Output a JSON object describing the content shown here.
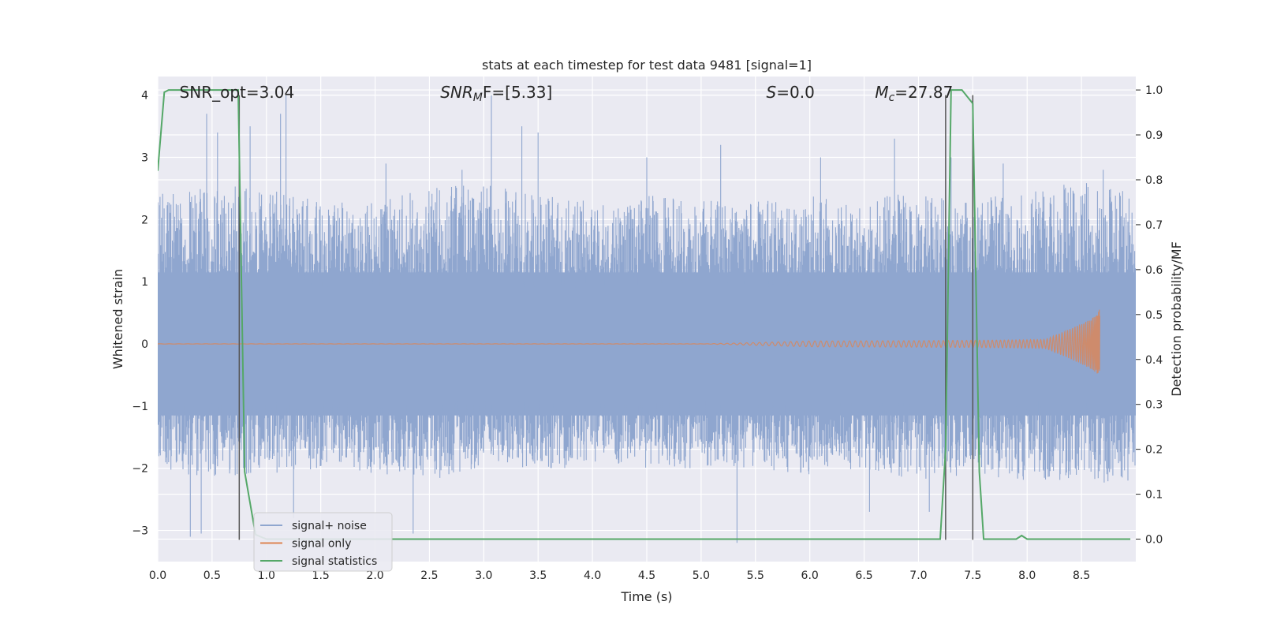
{
  "chart_data": {
    "type": "line",
    "title": "stats at each timestep for test data 9481 [signal=1]",
    "xlabel": "Time (s)",
    "ylabel": "Whitened strain",
    "y2label": "Detection probability/MF",
    "xlim": [
      0.0,
      9.0
    ],
    "ylim": [
      -3.5,
      4.3
    ],
    "y2lim": [
      -0.05,
      1.03
    ],
    "xticks": [
      "0.0",
      "0.5",
      "1.0",
      "1.5",
      "2.0",
      "2.5",
      "3.0",
      "3.5",
      "4.0",
      "4.5",
      "5.0",
      "5.5",
      "6.0",
      "6.5",
      "7.0",
      "7.5",
      "8.0",
      "8.5"
    ],
    "yticks": [
      "−3",
      "−2",
      "−1",
      "0",
      "1",
      "2",
      "3",
      "4"
    ],
    "y2ticks": [
      "0.0",
      "0.1",
      "0.2",
      "0.3",
      "0.4",
      "0.5",
      "0.6",
      "0.7",
      "0.8",
      "0.9",
      "1.0"
    ],
    "grid": true,
    "legend_placement": "lower-left",
    "annotations": [
      {
        "prefix": "SNR_opt=3.04",
        "italic": "",
        "sub": "",
        "suffix": "",
        "x": 0.2
      },
      {
        "prefix": "",
        "italic": "SNR",
        "sub": "M",
        "suffix": "F=[5.33]",
        "x": 2.6
      },
      {
        "prefix": "",
        "italic": "S",
        "sub": "",
        "suffix": "=0.0",
        "x": 5.6
      },
      {
        "prefix": "",
        "italic": "M",
        "sub": "c",
        "suffix": "=27.87",
        "x": 6.6
      }
    ],
    "series": [
      {
        "name": "signal+ noise",
        "color": "#8fa6cf",
        "style": "dense-noise",
        "band": [
          -1.15,
          1.15
        ],
        "envelope_upper": [
          [
            0.0,
            2.4
          ],
          [
            0.3,
            2.5
          ],
          [
            0.5,
            2.6
          ],
          [
            1.0,
            2.5
          ],
          [
            1.5,
            2.3
          ],
          [
            2.0,
            2.3
          ],
          [
            2.5,
            2.5
          ],
          [
            3.0,
            2.6
          ],
          [
            3.5,
            2.4
          ],
          [
            4.0,
            2.3
          ],
          [
            4.5,
            2.4
          ],
          [
            5.0,
            2.3
          ],
          [
            5.5,
            2.3
          ],
          [
            6.0,
            2.4
          ],
          [
            6.5,
            2.4
          ],
          [
            7.0,
            2.4
          ],
          [
            7.5,
            2.3
          ],
          [
            8.0,
            2.5
          ],
          [
            8.5,
            2.6
          ],
          [
            9.0,
            2.5
          ]
        ],
        "envelope_lower": [
          [
            0.0,
            -2.0
          ],
          [
            0.5,
            -2.2
          ],
          [
            1.0,
            -2.1
          ],
          [
            1.5,
            -2.0
          ],
          [
            2.0,
            -2.1
          ],
          [
            2.5,
            -2.2
          ],
          [
            3.0,
            -2.0
          ],
          [
            3.5,
            -2.0
          ],
          [
            4.0,
            -2.0
          ],
          [
            4.5,
            -2.0
          ],
          [
            5.0,
            -2.0
          ],
          [
            5.5,
            -2.0
          ],
          [
            6.0,
            -2.1
          ],
          [
            6.5,
            -2.0
          ],
          [
            7.0,
            -2.2
          ],
          [
            7.5,
            -2.1
          ],
          [
            8.0,
            -2.2
          ],
          [
            8.5,
            -2.2
          ],
          [
            9.0,
            -2.3
          ]
        ],
        "peaks": [
          [
            0.45,
            3.7
          ],
          [
            0.55,
            3.4
          ],
          [
            0.85,
            3.5
          ],
          [
            1.18,
            4.0
          ],
          [
            1.13,
            3.7
          ],
          [
            2.1,
            2.9
          ],
          [
            2.8,
            2.8
          ],
          [
            3.07,
            4.0
          ],
          [
            3.35,
            3.5
          ],
          [
            3.5,
            3.4
          ],
          [
            4.5,
            3.0
          ],
          [
            5.18,
            3.2
          ],
          [
            6.1,
            3.0
          ],
          [
            6.78,
            3.3
          ],
          [
            7.3,
            3.0
          ],
          [
            7.78,
            2.9
          ],
          [
            8.7,
            2.8
          ],
          [
            0.3,
            -3.1
          ],
          [
            0.4,
            -3.05
          ],
          [
            1.25,
            -2.8
          ],
          [
            2.35,
            -3.05
          ],
          [
            5.33,
            -3.2
          ],
          [
            6.55,
            -2.7
          ],
          [
            7.1,
            -2.7
          ]
        ],
        "seed": 9481
      },
      {
        "name": "signal only",
        "color": "#dd8452",
        "style": "chirp",
        "chirp_end_time": 8.67,
        "max_amplitude": 0.6
      },
      {
        "name": "signal statistics",
        "color": "#55a868",
        "axis": "right",
        "points": [
          [
            0.0,
            0.82
          ],
          [
            0.06,
            0.995
          ],
          [
            0.1,
            1.0
          ],
          [
            0.7,
            1.0
          ],
          [
            0.74,
            1.0
          ],
          [
            0.8,
            0.15
          ],
          [
            0.9,
            0.01
          ],
          [
            1.0,
            0.0
          ],
          [
            7.2,
            0.0
          ],
          [
            7.25,
            0.2
          ],
          [
            7.3,
            1.0
          ],
          [
            7.4,
            1.0
          ],
          [
            7.5,
            0.97
          ],
          [
            7.56,
            0.15
          ],
          [
            7.6,
            0.0
          ],
          [
            7.9,
            0.0
          ],
          [
            7.95,
            0.008
          ],
          [
            8.0,
            0.0
          ],
          [
            8.95,
            0.0
          ]
        ]
      }
    ],
    "vertical_lines": [
      0.75,
      7.25,
      7.5
    ]
  }
}
